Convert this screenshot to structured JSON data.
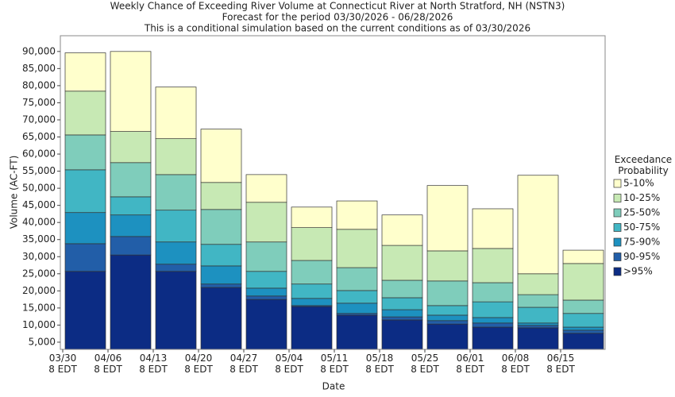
{
  "chart_data": {
    "type": "stacked-bar",
    "title": "Weekly Chance of Exceeding River Volume at Connecticut River at North Stratford, NH (NSTN3)",
    "subtitles": [
      "Forecast for the period 03/30/2026 - 06/28/2026",
      "This is a conditional simulation based on the current conditions as of 03/30/2026"
    ],
    "x_label": "Date",
    "y_label": "Volume (AC-FT)",
    "legend_title": "Exceedance\nProbability",
    "legend_position": "right",
    "grid": false,
    "categories": [
      "03/30\n8 EDT",
      "04/06\n8 EDT",
      "04/13\n8 EDT",
      "04/20\n8 EDT",
      "04/27\n8 EDT",
      "05/04\n8 EDT",
      "05/11\n8 EDT",
      "05/18\n8 EDT",
      "05/25\n8 EDT",
      "06/01\n8 EDT",
      "06/08\n8 EDT",
      "06/15\n8 EDT"
    ],
    "series": [
      {
        "name": ">95%",
        "color": "#0c2c84",
        "values": [
          25700,
          30500,
          25700,
          21000,
          17500,
          15400,
          12900,
          11500,
          10300,
          9400,
          9200,
          7600
        ]
      },
      {
        "name": "90-95%",
        "color": "#225ea8",
        "values": [
          8100,
          5400,
          2100,
          1000,
          1000,
          300,
          500,
          900,
          1000,
          1200,
          700,
          900
        ]
      },
      {
        "name": "75-90%",
        "color": "#1d91c0",
        "values": [
          9100,
          6300,
          6500,
          5300,
          2300,
          2100,
          3000,
          2100,
          1600,
          1600,
          700,
          900
        ]
      },
      {
        "name": "50-75%",
        "color": "#41b6c4",
        "values": [
          12500,
          5300,
          9300,
          6300,
          4900,
          4200,
          3700,
          3500,
          2800,
          4600,
          4600,
          4000
        ]
      },
      {
        "name": "25-50%",
        "color": "#7fcdbb",
        "values": [
          10200,
          10000,
          10400,
          10200,
          8600,
          6900,
          6700,
          5100,
          7200,
          5600,
          3700,
          3900
        ]
      },
      {
        "name": "10-25%",
        "color": "#c7e9b4",
        "values": [
          12800,
          9100,
          10500,
          7900,
          11600,
          9600,
          11200,
          10200,
          8800,
          10000,
          6100,
          10700
        ]
      },
      {
        "name": "5-10%",
        "color": "#ffffcc",
        "values": [
          11200,
          23400,
          15100,
          15600,
          8100,
          6000,
          8300,
          8900,
          19100,
          11600,
          28800,
          3900
        ]
      }
    ],
    "ylim": [
      2900,
      94600
    ],
    "yticks": [
      {
        "value": 5000,
        "label": "5,000"
      },
      {
        "value": 10000,
        "label": "10,000"
      },
      {
        "value": 15000,
        "label": "15,000"
      },
      {
        "value": 20000,
        "label": "20,000"
      },
      {
        "value": 25000,
        "label": "25,000"
      },
      {
        "value": 30000,
        "label": "30,000"
      },
      {
        "value": 35000,
        "label": "35,000"
      },
      {
        "value": 40000,
        "label": "40,000"
      },
      {
        "value": 45000,
        "label": "45,000"
      },
      {
        "value": 50000,
        "label": "50,000"
      },
      {
        "value": 55000,
        "label": "55,000"
      },
      {
        "value": 60000,
        "label": "60,000"
      },
      {
        "value": 65000,
        "label": "65,000"
      },
      {
        "value": 70000,
        "label": "70,000"
      },
      {
        "value": 75000,
        "label": "75,000"
      },
      {
        "value": 80000,
        "label": "80,000"
      },
      {
        "value": 85000,
        "label": "85,000"
      },
      {
        "value": 90000,
        "label": "90,000"
      }
    ]
  }
}
